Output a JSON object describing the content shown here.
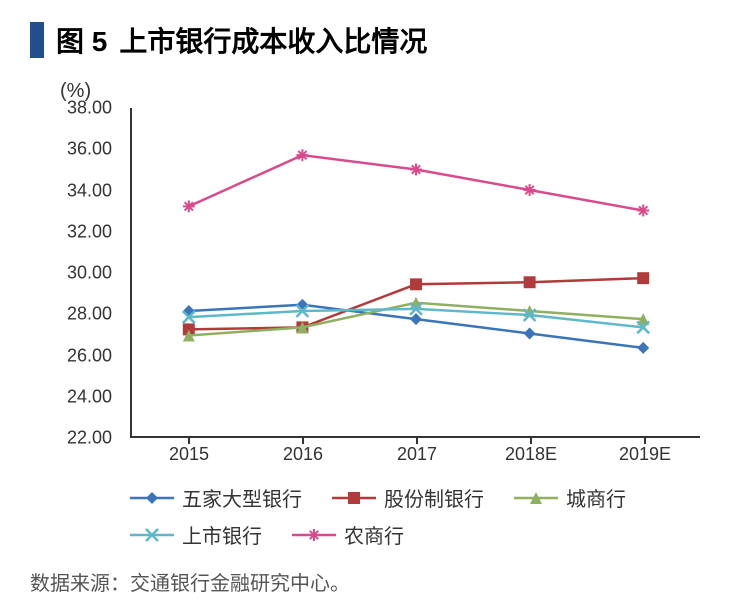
{
  "figure_label": "图 5",
  "title": "上市银行成本收入比情况",
  "title_bar_color": "#224e8f",
  "y_unit": "(%)",
  "source": "数据来源：交通银行金融研究中心。",
  "chart": {
    "type": "line",
    "background_color": "#ffffff",
    "ylim": [
      22,
      38
    ],
    "ytick_step": 2,
    "yticks": [
      "38.00",
      "36.00",
      "34.00",
      "32.00",
      "30.00",
      "28.00",
      "26.00",
      "24.00",
      "22.00"
    ],
    "categories": [
      "2015",
      "2016",
      "2017",
      "2018E",
      "2019E"
    ],
    "series": [
      {
        "name": "五家大型银行",
        "color": "#3b74b9",
        "marker": "diamond",
        "values": [
          28.1,
          28.4,
          27.7,
          27.0,
          26.3
        ]
      },
      {
        "name": "股份制银行",
        "color": "#b13a3a",
        "marker": "square",
        "values": [
          27.2,
          27.3,
          29.4,
          29.5,
          29.7
        ]
      },
      {
        "name": "城商行",
        "color": "#8fb060",
        "marker": "triangle",
        "values": [
          26.9,
          27.3,
          28.5,
          28.1,
          27.7
        ]
      },
      {
        "name": "上市银行",
        "color": "#5fb8c9",
        "marker": "x",
        "values": [
          27.8,
          28.1,
          28.2,
          27.9,
          27.3
        ]
      },
      {
        "name": "农商行",
        "color": "#d94a8c",
        "marker": "star",
        "values": [
          33.2,
          35.7,
          35.0,
          34.0,
          33.0
        ]
      }
    ],
    "line_width": 2.5,
    "marker_size": 6,
    "axis_color": "#333333",
    "label_fontsize": 18
  }
}
